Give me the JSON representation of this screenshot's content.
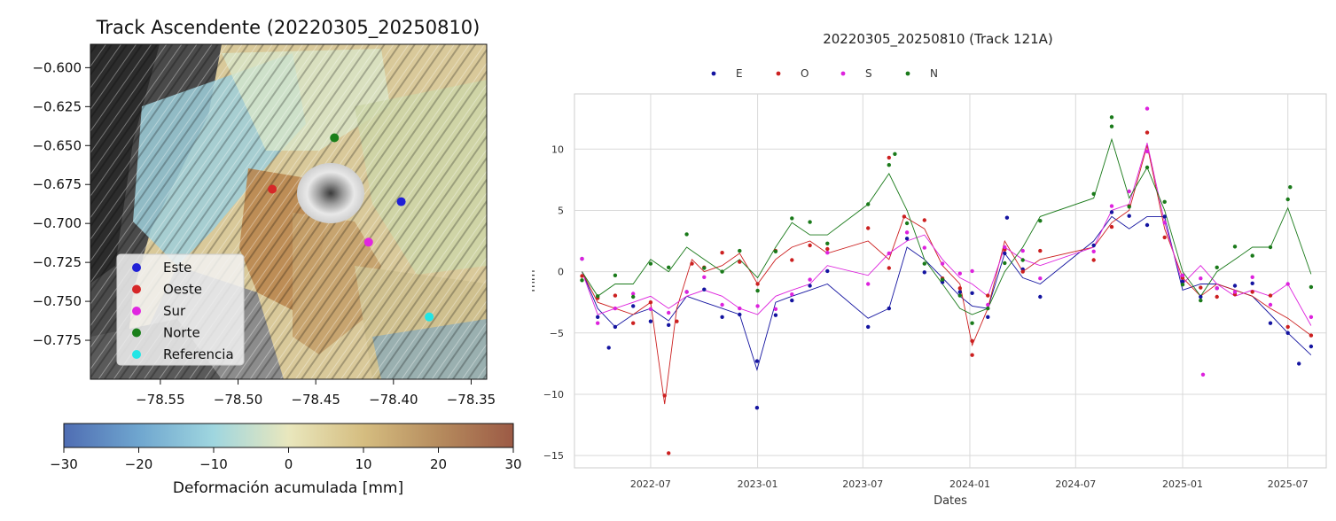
{
  "chart_data": [
    {
      "type": "scatter",
      "title": "Track Ascendente (20220305_20250810)",
      "xlabel": "",
      "ylabel": "",
      "xlim": [
        -78.595,
        -78.34
      ],
      "ylim": [
        -0.8,
        -0.585
      ],
      "x_ticks": [
        -78.55,
        -78.5,
        -78.45,
        -78.4,
        -78.35
      ],
      "x_tick_labels": [
        "−78.55",
        "−78.50",
        "−78.45",
        "−78.40",
        "−78.35"
      ],
      "y_ticks": [
        -0.6,
        -0.625,
        -0.65,
        -0.675,
        -0.7,
        -0.725,
        -0.75,
        -0.775
      ],
      "y_tick_labels": [
        "−0.600",
        "−0.625",
        "−0.650",
        "−0.675",
        "−0.700",
        "−0.725",
        "−0.750",
        "−0.775"
      ],
      "legend_position": "lower-left",
      "points": [
        {
          "name": "Este",
          "x": -78.395,
          "y": -0.686,
          "color": "#1f1fd6"
        },
        {
          "name": "Oeste",
          "x": -78.478,
          "y": -0.678,
          "color": "#d62728"
        },
        {
          "name": "Sur",
          "x": -78.416,
          "y": -0.712,
          "color": "#e026e0"
        },
        {
          "name": "Norte",
          "x": -78.438,
          "y": -0.645,
          "color": "#1a7f1a"
        },
        {
          "name": "Referencia",
          "x": -78.377,
          "y": -0.76,
          "color": "#22e5e5"
        }
      ],
      "colorbar": {
        "label": "Deformación acumulada [mm]",
        "range": [
          -30,
          30
        ],
        "ticks": [
          -30,
          -20,
          -10,
          0,
          10,
          20,
          30
        ],
        "tick_labels": [
          "−30",
          "−20",
          "−10",
          "0",
          "10",
          "20",
          "30"
        ],
        "colors": [
          "#4f6db3",
          "#6fa6cf",
          "#9fd6df",
          "#e9e7bd",
          "#d5bd80",
          "#b68c5e",
          "#9c5a45"
        ]
      }
    },
    {
      "type": "line",
      "title": "20220305_20250810 (Track 121A)",
      "xlabel": "Dates",
      "ylabel": "mm",
      "xlim": [
        "2022-02-20",
        "2025-09-05"
      ],
      "ylim": [
        -16,
        14.5
      ],
      "grid": true,
      "legend_position": "top",
      "x_ticks": [
        "2022-07-01",
        "2023-01-01",
        "2023-07-01",
        "2024-01-01",
        "2024-07-01",
        "2025-01-01",
        "2025-07-01"
      ],
      "x_tick_labels": [
        "2022-07",
        "2023-01",
        "2023-07",
        "2024-01",
        "2024-07",
        "2025-01",
        "2025-07"
      ],
      "y_ticks": [
        -15,
        -10,
        -5,
        0,
        5,
        10
      ],
      "y_tick_labels": [
        "−15",
        "−10",
        "−5",
        "0",
        "5",
        "10"
      ],
      "series": [
        {
          "name": "E",
          "color": "#1414a0",
          "x": [
            "2022-03-05",
            "2022-04-01",
            "2022-05-01",
            "2022-06-01",
            "2022-07-01",
            "2022-08-01",
            "2022-09-01",
            "2022-10-01",
            "2022-11-01",
            "2022-12-01",
            "2022-12-31",
            "2023-02-01",
            "2023-03-01",
            "2023-04-01",
            "2023-05-01",
            "2023-07-10",
            "2023-08-15",
            "2023-09-15",
            "2023-10-15",
            "2023-11-15",
            "2023-12-15",
            "2024-01-05",
            "2024-02-01",
            "2024-03-01",
            "2024-04-01",
            "2024-05-01",
            "2024-08-01",
            "2024-09-01",
            "2024-10-01",
            "2024-11-01",
            "2024-12-01",
            "2025-01-01",
            "2025-02-01",
            "2025-03-01",
            "2025-04-01",
            "2025-05-01",
            "2025-06-01",
            "2025-07-01",
            "2025-08-10"
          ],
          "y": [
            0,
            -3,
            -4.5,
            -3.5,
            -3,
            -4,
            -2,
            -2.5,
            -3,
            -3.5,
            -8,
            -2.5,
            -2,
            -1.5,
            -1,
            -3.8,
            -3,
            2,
            1,
            -0.5,
            -2,
            -2.8,
            -3,
            1.5,
            -0.5,
            -1,
            2.5,
            4.5,
            3.5,
            4.5,
            4.5,
            -1.5,
            -1,
            -1,
            -1.5,
            -2,
            -3.5,
            -5,
            -6.8
          ]
        },
        {
          "name": "O",
          "color": "#cc2020",
          "x": [
            "2022-03-05",
            "2022-04-01",
            "2022-05-01",
            "2022-06-01",
            "2022-07-01",
            "2022-07-25",
            "2022-08-15",
            "2022-09-10",
            "2022-10-01",
            "2022-11-01",
            "2022-12-01",
            "2023-01-01",
            "2023-02-01",
            "2023-03-01",
            "2023-04-01",
            "2023-05-01",
            "2023-07-10",
            "2023-08-15",
            "2023-09-10",
            "2023-10-15",
            "2023-11-15",
            "2023-12-15",
            "2024-01-05",
            "2024-02-01",
            "2024-03-01",
            "2024-04-01",
            "2024-05-01",
            "2024-08-01",
            "2024-09-01",
            "2024-10-01",
            "2024-11-01",
            "2024-12-01",
            "2025-01-01",
            "2025-02-01",
            "2025-03-01",
            "2025-04-01",
            "2025-05-01",
            "2025-06-01",
            "2025-07-01",
            "2025-08-10"
          ],
          "y": [
            0,
            -2.5,
            -3,
            -3.5,
            -2.5,
            -10.8,
            -3,
            1,
            0,
            0.5,
            1.5,
            -1,
            1,
            2,
            2.5,
            1.5,
            2.5,
            1,
            4.5,
            3.5,
            0.5,
            -1,
            -6,
            -3,
            2.5,
            0,
            1,
            2,
            4,
            5,
            10.3,
            3.5,
            -0.5,
            -2,
            -1,
            -1.5,
            -2,
            -3,
            -3.8,
            -5.2
          ]
        },
        {
          "name": "S",
          "color": "#dd22dd",
          "x": [
            "2022-03-05",
            "2022-04-01",
            "2022-05-01",
            "2022-06-01",
            "2022-07-01",
            "2022-08-01",
            "2022-09-01",
            "2022-10-01",
            "2022-11-01",
            "2022-12-01",
            "2023-01-01",
            "2023-02-01",
            "2023-03-01",
            "2023-04-01",
            "2023-05-01",
            "2023-07-10",
            "2023-08-15",
            "2023-09-15",
            "2023-10-15",
            "2023-11-15",
            "2023-12-15",
            "2024-01-05",
            "2024-02-01",
            "2024-03-01",
            "2024-04-01",
            "2024-05-01",
            "2024-08-01",
            "2024-09-01",
            "2024-10-01",
            "2024-11-01",
            "2024-12-01",
            "2025-01-01",
            "2025-02-01",
            "2025-03-01",
            "2025-04-01",
            "2025-05-01",
            "2025-06-01",
            "2025-07-01",
            "2025-08-10"
          ],
          "y": [
            0,
            -3.5,
            -3,
            -2.5,
            -2,
            -3,
            -2,
            -1.5,
            -2,
            -3,
            -3.5,
            -2,
            -1.5,
            -1,
            0.5,
            -0.3,
            1.5,
            2.5,
            3,
            1,
            -0.5,
            -1,
            -2,
            2,
            1,
            0.5,
            2,
            5,
            5.5,
            10.5,
            4,
            -1,
            0.5,
            -1,
            -2,
            -1.5,
            -2,
            -1,
            -4.4
          ]
        },
        {
          "name": "N",
          "color": "#1a7a1a",
          "x": [
            "2022-03-05",
            "2022-04-01",
            "2022-05-01",
            "2022-06-01",
            "2022-07-01",
            "2022-08-01",
            "2022-09-01",
            "2022-10-01",
            "2022-11-01",
            "2022-12-01",
            "2023-01-01",
            "2023-02-01",
            "2023-03-01",
            "2023-04-01",
            "2023-05-01",
            "2023-07-10",
            "2023-08-15",
            "2023-09-15",
            "2023-10-15",
            "2023-11-15",
            "2023-12-15",
            "2024-01-05",
            "2024-02-01",
            "2024-03-01",
            "2024-04-01",
            "2024-05-01",
            "2024-08-01",
            "2024-09-01",
            "2024-10-01",
            "2024-11-01",
            "2024-12-01",
            "2025-01-01",
            "2025-02-01",
            "2025-03-01",
            "2025-04-01",
            "2025-05-01",
            "2025-06-01",
            "2025-07-01",
            "2025-08-10"
          ],
          "y": [
            0,
            -2,
            -1,
            -1,
            1,
            0,
            2,
            1,
            0,
            1,
            -0.5,
            2,
            4,
            3,
            3,
            5.5,
            8,
            5,
            1,
            -1,
            -3,
            -3.5,
            -3,
            0,
            2,
            4.5,
            6,
            10.8,
            6,
            8.5,
            5,
            0,
            -2,
            0,
            1,
            2,
            2,
            5.2,
            -0.2
          ]
        }
      ],
      "extra_points": [
        {
          "series": "O",
          "x": "2022-08-01",
          "y": -14.8
        },
        {
          "series": "E",
          "x": "2022-12-31",
          "y": -11.1
        },
        {
          "series": "N",
          "x": "2024-09-01",
          "y": 12.6
        },
        {
          "series": "S",
          "x": "2024-11-01",
          "y": 13.3
        },
        {
          "series": "O",
          "x": "2023-08-15",
          "y": 9.3
        },
        {
          "series": "N",
          "x": "2023-08-25",
          "y": 9.6
        },
        {
          "series": "E",
          "x": "2024-03-05",
          "y": 4.4
        },
        {
          "series": "S",
          "x": "2025-02-05",
          "y": -8.4
        },
        {
          "series": "E",
          "x": "2025-07-20",
          "y": -7.5
        },
        {
          "series": "O",
          "x": "2024-01-05",
          "y": -6.8
        },
        {
          "series": "E",
          "x": "2022-04-20",
          "y": -6.2
        },
        {
          "series": "N",
          "x": "2025-07-05",
          "y": 6.9
        }
      ]
    }
  ]
}
